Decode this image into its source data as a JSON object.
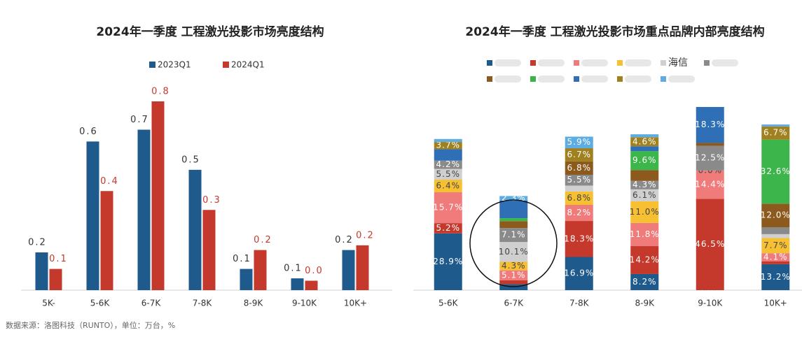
{
  "chart_data": [
    {
      "type": "bar",
      "title": "2024年一季度 工程激光投影市场亮度结构",
      "categories": [
        "5K-",
        "5-6K",
        "6-7K",
        "7-8K",
        "8-9K",
        "9-10K",
        "10K+"
      ],
      "series": [
        {
          "name": "2023Q1",
          "color": "#1f5a8c",
          "values": [
            0.16,
            0.63,
            0.68,
            0.51,
            0.09,
            0.05,
            0.17
          ],
          "value_labels": [
            "0.2",
            "0.6",
            "0.7",
            "0.5",
            "0.1",
            "0.1",
            "0.2"
          ]
        },
        {
          "name": "2024Q1",
          "color": "#c5392c",
          "values": [
            0.09,
            0.42,
            0.8,
            0.34,
            0.17,
            0.04,
            0.19
          ],
          "value_labels": [
            "0.1",
            "0.4",
            "0.8",
            "0.3",
            "0.2",
            "0.0",
            "0.2"
          ]
        }
      ]
    },
    {
      "type": "stacked_bar",
      "title": "2024年一季度 工程激光投影市场重点品牌内部亮度结构",
      "categories": [
        "5-6K",
        "6-7K",
        "7-8K",
        "8-9K",
        "9-10K",
        "10K+"
      ],
      "series": [
        {
          "color": "#1f5a8c",
          "values": [
            28.9,
            3,
            16.9,
            8.2,
            0.0,
            13.2
          ],
          "value_labels": [
            "28.9%",
            null,
            "16.9%",
            "8.2%",
            "0.0%",
            "13.2%"
          ]
        },
        {
          "color": "#c5392c",
          "values": [
            5.2,
            2,
            18.3,
            14.2,
            46.5,
            1.5
          ],
          "value_labels": [
            "5.2%",
            null,
            "18.3%",
            "14.2%",
            "46.5%",
            null
          ]
        },
        {
          "color": "#f07b7b",
          "values": [
            15.7,
            5.1,
            8.2,
            11.8,
            14.4,
            4.1
          ],
          "value_labels": [
            "15.7%",
            "5.1%",
            "8.2%",
            "11.8%",
            "14.4%",
            "4.1%"
          ]
        },
        {
          "color": "#f7c033",
          "values": [
            6.4,
            4.3,
            6.8,
            11.0,
            0,
            7.7
          ],
          "value_labels": [
            "6.4%",
            "4.3%",
            "6.8%",
            "11.0%",
            null,
            "7.7%"
          ]
        },
        {
          "name": "海信",
          "color": "#cfcfcf",
          "values": [
            5.5,
            10.1,
            3,
            6.1,
            0.0,
            2
          ],
          "value_labels": [
            "5.5%",
            "10.1%",
            null,
            "6.1%",
            "0.0%",
            null
          ]
        },
        {
          "color": "#8a8a8a",
          "values": [
            4.2,
            7.1,
            5.5,
            4.3,
            12.5,
            3.5
          ],
          "value_labels": [
            "4.2%",
            "7.1%",
            "5.5%",
            "4.3%",
            "12.5%",
            null
          ]
        },
        {
          "color": "#8b5a1c",
          "values": [
            0,
            3.5,
            6.8,
            5.5,
            1.5,
            12.0
          ],
          "value_labels": [
            null,
            null,
            "6.8%",
            null,
            null,
            "12.0%"
          ]
        },
        {
          "color": "#3cb54a",
          "values": [
            0,
            1.5,
            0,
            9.6,
            0,
            32.6
          ],
          "value_labels": [
            null,
            null,
            null,
            "9.6%",
            null,
            "32.6%"
          ]
        },
        {
          "color": "#2e6fb6",
          "values": [
            5.8,
            9,
            0,
            2.5,
            18.3,
            0
          ],
          "value_labels": [
            null,
            null,
            null,
            null,
            "18.3%",
            null
          ]
        },
        {
          "color": "#a0801f",
          "values": [
            3.7,
            0,
            6.7,
            4.6,
            0,
            6.7
          ],
          "value_labels": [
            "3.7%",
            null,
            "6.7%",
            "4.6%",
            null,
            "6.7%"
          ]
        },
        {
          "color": "#5dade2",
          "values": [
            1.5,
            2.3,
            5.9,
            1.5,
            0,
            1.0
          ],
          "value_labels": [
            null,
            "2.3%",
            "5.9%",
            null,
            null,
            null
          ]
        }
      ]
    }
  ],
  "source": "数据来源：洛图科技（RUNTO），单位：万台，%"
}
